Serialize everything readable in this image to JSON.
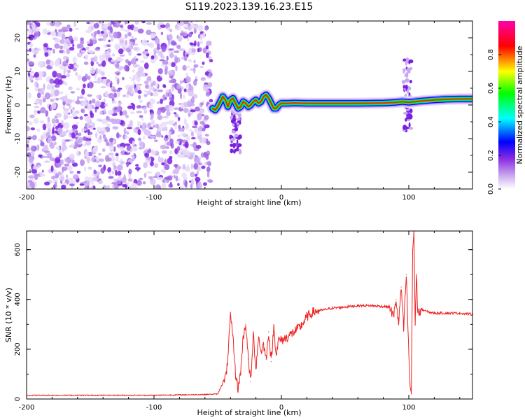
{
  "title": "S119.2023.139.16.23.E15",
  "chart_data": [
    {
      "type": "heatmap",
      "xlabel": "Height of straight line (km)",
      "ylabel": "Frequency (Hz)",
      "xlim": [
        -200,
        150
      ],
      "ylim": [
        -25,
        25
      ],
      "x_ticks": [
        -200,
        -100,
        0,
        100
      ],
      "y_ticks": [
        -20,
        -10,
        0,
        10,
        20
      ],
      "colorbar": {
        "label": "Normalized spectral amplitude",
        "range": [
          0,
          1
        ],
        "ticks": [
          "0.0",
          "0.2",
          "0.4",
          "0.6",
          "0.8"
        ],
        "colors": [
          "#ffffff",
          "#8a2be2",
          "#0000ff",
          "#00ffff",
          "#00ff00",
          "#ffff00",
          "#ff0000",
          "#ff00aa"
        ]
      },
      "noise_region": {
        "x": [
          -200,
          -55
        ],
        "y": [
          -25,
          25
        ]
      },
      "ridge": {
        "x": [
          -54,
          -52,
          -50,
          -48,
          -46,
          -44,
          -42,
          -40,
          -38,
          -36,
          -34,
          -32,
          -30,
          -28,
          -26,
          -24,
          -22,
          -20,
          -18,
          -16,
          -14,
          -12,
          -10,
          -8,
          -6,
          -4,
          -2,
          0,
          5,
          10,
          20,
          40,
          60,
          80,
          90,
          95,
          100,
          110,
          120,
          130,
          140,
          150
        ],
        "y": [
          -1.0,
          -1.5,
          -0.5,
          1.0,
          2.5,
          1.5,
          -0.5,
          1.5,
          2.0,
          0.5,
          -1.0,
          -0.5,
          1.0,
          0.5,
          -0.5,
          0.0,
          1.0,
          1.5,
          0.5,
          1.0,
          2.5,
          3.0,
          2.0,
          0.5,
          -1.0,
          -1.0,
          0.0,
          0.5,
          0.5,
          0.6,
          0.5,
          0.5,
          0.5,
          0.6,
          0.8,
          1.0,
          0.8,
          1.2,
          1.5,
          1.7,
          1.8,
          1.8
        ]
      },
      "spike_regions": [
        {
          "x": [
            -40,
            -32
          ],
          "y": [
            -14,
            0
          ]
        },
        {
          "x": [
            96,
            102
          ],
          "y": [
            -8,
            14
          ]
        }
      ]
    },
    {
      "type": "line",
      "xlabel": "Height of straight line (km)",
      "ylabel": "SNR (10 * v/v)",
      "xlim": [
        -200,
        150
      ],
      "ylim": [
        0,
        675
      ],
      "x_ticks": [
        -200,
        -100,
        0,
        100
      ],
      "y_ticks": [
        0,
        200,
        400,
        600
      ],
      "color": "#ee2222",
      "series": [
        {
          "x": [
            -200,
            -100,
            -60,
            -50,
            -43,
            -40,
            -38,
            -36,
            -34,
            -32,
            -30,
            -28,
            -26,
            -24,
            -22,
            -20,
            -18,
            -16,
            -14,
            -12,
            -10,
            -8,
            -6,
            -4,
            -2,
            0,
            5,
            10,
            15,
            20,
            25,
            30,
            40,
            50,
            60,
            70,
            80,
            85,
            88,
            90,
            92,
            94,
            96,
            98,
            100,
            101,
            102,
            103,
            104,
            105,
            106,
            107,
            108,
            110,
            115,
            120,
            130,
            140,
            150
          ],
          "y": [
            15,
            15,
            18,
            20,
            100,
            330,
            250,
            100,
            40,
            110,
            250,
            300,
            160,
            70,
            260,
            120,
            250,
            190,
            220,
            160,
            270,
            150,
            290,
            180,
            240,
            235,
            250,
            270,
            290,
            330,
            350,
            355,
            365,
            370,
            375,
            375,
            372,
            370,
            330,
            400,
            300,
            450,
            280,
            500,
            180,
            60,
            20,
            600,
            670,
            300,
            500,
            360,
            340,
            360,
            350,
            345,
            345,
            345,
            340
          ]
        }
      ]
    }
  ]
}
